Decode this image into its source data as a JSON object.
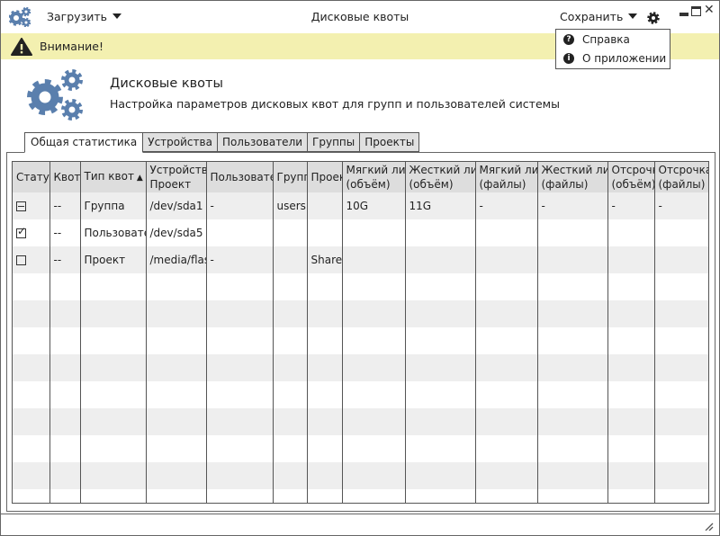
{
  "window": {
    "title": "Дисковые квоты"
  },
  "toolbar": {
    "load_label": "Загрузить",
    "save_label": "Сохранить"
  },
  "menu": {
    "items": [
      {
        "label": "Справка",
        "icon": "help-icon"
      },
      {
        "label": "О приложении",
        "icon": "info-icon"
      }
    ]
  },
  "warning": {
    "text": "Внимание!"
  },
  "header": {
    "title": "Дисковые квоты",
    "subtitle": "Настройка параметров дисковых квот для групп и пользователей системы"
  },
  "tabs": [
    {
      "label": "Общая статистика",
      "active": true
    },
    {
      "label": "Устройства"
    },
    {
      "label": "Пользователи"
    },
    {
      "label": "Группы"
    },
    {
      "label": "Проекты"
    }
  ],
  "table": {
    "columns": [
      "Статус",
      "Квоты",
      "Тип квот",
      "Устройство\nПроект",
      "Пользователь",
      "Группа",
      "Проект",
      "Мягкий лимит\n(объём)",
      "Жесткий лимит\n(объём)",
      "Мягкий лимит\n(файлы)",
      "Жесткий лимит\n(файлы)",
      "Отсрочка\n(объём)",
      "Отсрочка\n(файлы)"
    ],
    "sorted_column": "Тип квот",
    "rows": [
      {
        "status": "partial",
        "cells": [
          "",
          "--",
          "Группа",
          "/dev/sda1",
          "-",
          "users",
          "",
          "10G",
          "11G",
          "-",
          "-",
          "-",
          "-"
        ]
      },
      {
        "status": "checked",
        "cells": [
          "",
          "--",
          "Пользователь",
          "/dev/sda5",
          "",
          "",
          "",
          "",
          "",
          "",
          "",
          "",
          ""
        ]
      },
      {
        "status": "unchecked",
        "cells": [
          "",
          "--",
          "Проект",
          "/media/flash",
          "-",
          "",
          "Shared",
          "",
          "",
          "",
          "",
          "",
          ""
        ]
      }
    ]
  },
  "colors": {
    "accent": "#5a7fad",
    "warning_bg": "#f3f0b0",
    "header_bg": "#dddddd",
    "stripe": "#eeeeee"
  }
}
